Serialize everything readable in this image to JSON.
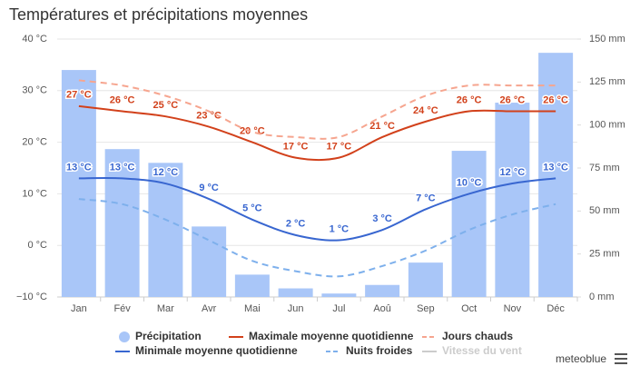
{
  "chart_data": {
    "type": "combo",
    "title": "Températures et précipitations moyennes",
    "categories": [
      "Jan",
      "Fév",
      "Mar",
      "Avr",
      "Mai",
      "Jun",
      "Jul",
      "Aoû",
      "Sep",
      "Oct",
      "Nov",
      "Déc"
    ],
    "ylim": [
      -10,
      40
    ],
    "yticks": [
      {
        "value": -10,
        "label": "−10 °C"
      },
      {
        "value": 0,
        "label": "0 °C"
      },
      {
        "value": 10,
        "label": "10 °C"
      },
      {
        "value": 20,
        "label": "20 °C"
      },
      {
        "value": 30,
        "label": "30 °C"
      },
      {
        "value": 40,
        "label": "40 °C"
      }
    ],
    "y2lim": [
      0,
      150
    ],
    "y2ticks": [
      {
        "value": 0,
        "label": "0 mm"
      },
      {
        "value": 25,
        "label": "25 mm"
      },
      {
        "value": 50,
        "label": "50 mm"
      },
      {
        "value": 75,
        "label": "75 mm"
      },
      {
        "value": 100,
        "label": "100 mm"
      },
      {
        "value": 125,
        "label": "125 mm"
      },
      {
        "value": 150,
        "label": "150 mm"
      }
    ],
    "grid": true,
    "series": [
      {
        "name": "Précipitation",
        "kind": "bar",
        "axis": "y2",
        "color": "#a9c6f8",
        "values": [
          132,
          86,
          78,
          41,
          13,
          5,
          2,
          7,
          20,
          85,
          113,
          142
        ]
      },
      {
        "name": "Maximale moyenne quotidienne",
        "kind": "line",
        "color": "#d2411b",
        "values": [
          27,
          26,
          25,
          23,
          20,
          17,
          17,
          21,
          24,
          26,
          26,
          26
        ],
        "value_labels": [
          "27 °C",
          "26 °C",
          "25 °C",
          "23 °C",
          "20 °C",
          "17 °C",
          "17 °C",
          "21 °C",
          "24 °C",
          "26 °C",
          "26 °C",
          "26 °C"
        ]
      },
      {
        "name": "Jours chauds",
        "kind": "line",
        "dashed": true,
        "color": "#f6a58f",
        "values": [
          32,
          31,
          29,
          26,
          22,
          21,
          21,
          25,
          29,
          31,
          31,
          31
        ]
      },
      {
        "name": "Minimale moyenne quotidienne",
        "kind": "line",
        "color": "#3866d0",
        "values": [
          13,
          13,
          12,
          9,
          5,
          2,
          1,
          3,
          7,
          10,
          12,
          13
        ],
        "value_labels": [
          "13 °C",
          "13 °C",
          "12 °C",
          "9 °C",
          "5 °C",
          "2 °C",
          "1 °C",
          "3 °C",
          "7 °C",
          "10 °C",
          "12 °C",
          "13 °C"
        ]
      },
      {
        "name": "Nuits froides",
        "kind": "line",
        "dashed": true,
        "color": "#7eb0ec",
        "values": [
          9,
          8,
          5,
          1,
          -3,
          -5,
          -6,
          -4,
          -1,
          3,
          6,
          8
        ]
      }
    ],
    "legend_extra": [
      {
        "name": "Vitesse du vent",
        "color": "#cccccc"
      }
    ],
    "credit": "meteoblue"
  }
}
